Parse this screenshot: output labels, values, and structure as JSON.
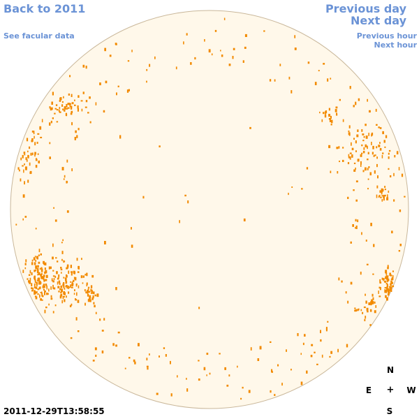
{
  "nav": {
    "back": "Back to 2011",
    "facular": "See facular data",
    "previous_day": "Previous day",
    "next_day": "Next day",
    "previous_hour": "Previous hour",
    "next_hour": "Next hour"
  },
  "compass": {
    "north": "N",
    "east": "E",
    "center": "+",
    "west": "W",
    "south": "S"
  },
  "timestamp": "2011-12-29T13:58:55",
  "colors": {
    "disk_fill": "#fff8ea",
    "disk_edge": "#c9b79a",
    "facula": "#f28a00"
  }
}
